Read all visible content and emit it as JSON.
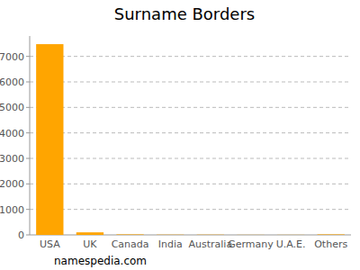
{
  "chart_data": {
    "type": "bar",
    "title": "Surname Borders",
    "categories": [
      "USA",
      "UK",
      "Canada",
      "India",
      "Australia",
      "Germany",
      "U.A.E.",
      "Others"
    ],
    "values": [
      7480,
      100,
      20,
      10,
      10,
      5,
      5,
      20
    ],
    "color": "#ffa500",
    "ylim": [
      0,
      7800
    ],
    "yticks": [
      0,
      1000,
      2000,
      3000,
      4000,
      5000,
      6000,
      7000
    ],
    "grid": true,
    "annotations": [
      "namespedia.com"
    ]
  }
}
